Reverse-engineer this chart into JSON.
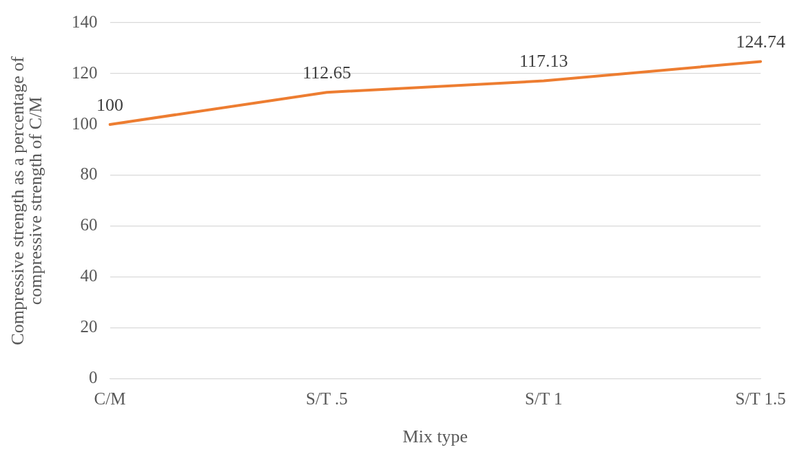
{
  "chart_data": {
    "type": "line",
    "xlabel": "Mix type",
    "ylabel": "Compressive strength as a percentage of compressive strength of C/M",
    "categories": [
      "C/M",
      "S/T .5",
      "S/T 1",
      "S/T 1.5"
    ],
    "series": [
      {
        "color": "#ed7d31",
        "values": [
          100,
          112.65,
          117.13,
          124.74
        ]
      }
    ],
    "ylim": [
      0,
      140
    ],
    "yticks": [
      0,
      20,
      40,
      60,
      80,
      100,
      120,
      140
    ],
    "grid": "y",
    "legend": false,
    "marker": "none",
    "line_style": "solid",
    "data_labels": true
  }
}
